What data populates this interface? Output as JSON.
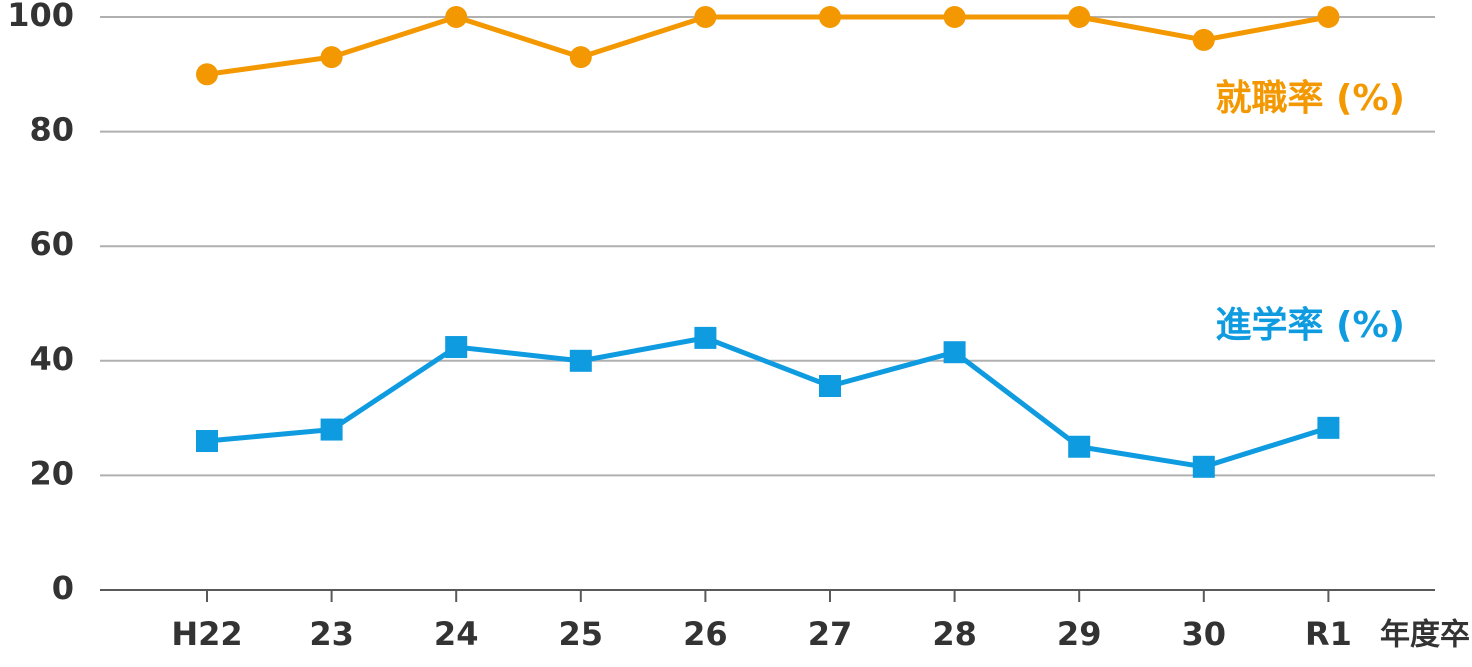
{
  "chart_data": {
    "type": "line",
    "categories": [
      "H22",
      "23",
      "24",
      "25",
      "26",
      "27",
      "28",
      "29",
      "30",
      "R1"
    ],
    "x_label": "年度卒",
    "series": [
      {
        "name": "就職率 (%)",
        "color": "#f39800",
        "marker": "circle",
        "values": [
          90,
          93,
          100,
          93,
          100,
          100,
          100,
          100,
          96,
          100
        ]
      },
      {
        "name": "進学率 (%)",
        "color": "#0f9be0",
        "marker": "square",
        "values": [
          26,
          28,
          42.4,
          40,
          44,
          35.6,
          41.5,
          25,
          21.5,
          28.3
        ]
      }
    ],
    "ylim": [
      0,
      100
    ],
    "yticks": [
      0,
      20,
      40,
      60,
      80,
      100
    ],
    "grid": true
  }
}
